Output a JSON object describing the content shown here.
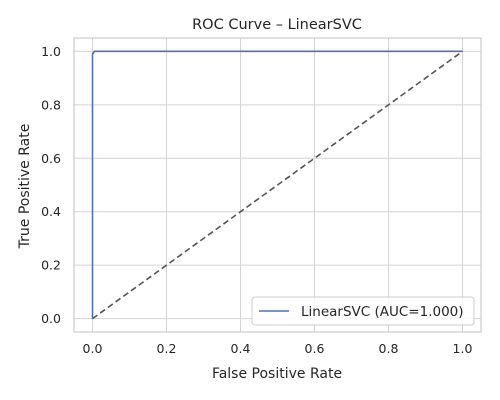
{
  "chart_data": {
    "type": "line",
    "title": "ROC Curve – LinearSVC",
    "xlabel": "False Positive Rate",
    "ylabel": "True Positive Rate",
    "xlim": [
      -0.05,
      1.05
    ],
    "ylim": [
      -0.05,
      1.05
    ],
    "xticks": [
      0.0,
      0.2,
      0.4,
      0.6,
      0.8,
      1.0
    ],
    "yticks": [
      0.0,
      0.2,
      0.4,
      0.6,
      0.8,
      1.0
    ],
    "xtick_labels": [
      "0.0",
      "0.2",
      "0.4",
      "0.6",
      "0.8",
      "1.0"
    ],
    "ytick_labels": [
      "0.0",
      "0.2",
      "0.4",
      "0.6",
      "0.8",
      "1.0"
    ],
    "grid": true,
    "legend_position": "lower-right",
    "series": [
      {
        "name": "LinearSVC (AUC=1.000)",
        "color": "#4c72b0",
        "style": "solid",
        "x": [
          0.0,
          0.0,
          0.0,
          0.005,
          1.0
        ],
        "y": [
          0.0,
          0.98,
          0.99,
          1.0,
          1.0
        ]
      },
      {
        "color": "#555555",
        "style": "dashed",
        "x": [
          0.0,
          1.0
        ],
        "y": [
          0.0,
          1.0
        ]
      }
    ]
  }
}
